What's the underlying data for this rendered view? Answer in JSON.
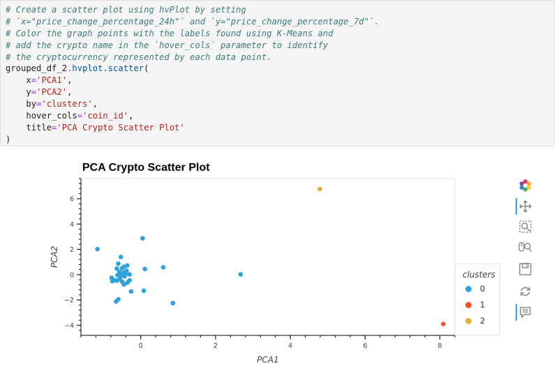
{
  "code_cell": {
    "comment_lines": [
      "# Create a scatter plot using hvPlot by setting",
      "# `x=\"price_change_percentage_24h\"` and `y=\"price_change_percentage_7d\"`.",
      "# Color the graph points with the labels found using K-Means and",
      "# add the crypto name in the `hover_cols` parameter to identify",
      "# the cryptocurrency represented by each data point."
    ],
    "call_object": "grouped_df_2",
    "call_method": "hvplot.scatter",
    "call_open": "(",
    "args": [
      {
        "name": "x",
        "value": "'PCA1'"
      },
      {
        "name": "y",
        "value": "'PCA2'"
      },
      {
        "name": "by",
        "value": "'clusters'"
      },
      {
        "name": "hover_cols",
        "value": "'coin_id'"
      },
      {
        "name": "title",
        "value": "'PCA Crypto Scatter Plot'"
      }
    ],
    "call_close": ")"
  },
  "plot": {
    "title": "PCA Crypto Scatter Plot"
  },
  "chart_data": {
    "type": "scatter",
    "title": "PCA Crypto Scatter Plot",
    "xlabel": "PCA1",
    "ylabel": "PCA2",
    "xlim": [
      -1.6,
      8.4
    ],
    "ylim": [
      -4.8,
      7.6
    ],
    "xticks": [
      0,
      2,
      4,
      6,
      8
    ],
    "yticks": [
      -4,
      -2,
      0,
      2,
      4,
      6
    ],
    "grid": false,
    "legend_title": "clusters",
    "legend_position": "right",
    "series": [
      {
        "name": "0",
        "color": "#30a2da",
        "points": [
          [
            -1.16,
            2.02
          ],
          [
            0.05,
            2.87
          ],
          [
            -0.53,
            1.4
          ],
          [
            -0.6,
            0.87
          ],
          [
            -0.45,
            0.62
          ],
          [
            -0.36,
            0.72
          ],
          [
            -0.64,
            0.48
          ],
          [
            -0.5,
            0.5
          ],
          [
            -0.38,
            0.3
          ],
          [
            -0.57,
            0.21
          ],
          [
            -0.46,
            0.15
          ],
          [
            -0.41,
            0.02
          ],
          [
            -0.3,
            0.02
          ],
          [
            -0.51,
            -0.05
          ],
          [
            -0.62,
            -0.04
          ],
          [
            -0.54,
            -0.12
          ],
          [
            -0.43,
            -0.13
          ],
          [
            -0.78,
            -0.25
          ],
          [
            -0.72,
            -0.43
          ],
          [
            -0.76,
            -0.52
          ],
          [
            -0.64,
            -0.47
          ],
          [
            -0.56,
            -0.35
          ],
          [
            -0.5,
            -0.55
          ],
          [
            -0.36,
            -0.63
          ],
          [
            -0.45,
            -0.78
          ],
          [
            -0.3,
            -0.45
          ],
          [
            -0.26,
            -1.33
          ],
          [
            -0.6,
            -1.95
          ],
          [
            -0.66,
            -2.12
          ],
          [
            0.08,
            -1.27
          ],
          [
            0.11,
            0.45
          ],
          [
            0.6,
            0.58
          ],
          [
            0.86,
            -2.25
          ],
          [
            2.67,
            0.02
          ]
        ]
      },
      {
        "name": "1",
        "color": "#fc4f30",
        "points": [
          [
            8.09,
            -3.9
          ]
        ]
      },
      {
        "name": "2",
        "color": "#e5ae38",
        "points": [
          [
            4.79,
            6.77
          ]
        ]
      }
    ]
  },
  "toolbar": {
    "tools": [
      {
        "name": "bokeh-logo-icon",
        "label": "Bokeh",
        "color": "#e6335b"
      },
      {
        "name": "pan-icon",
        "label": "Pan"
      },
      {
        "name": "box-zoom-icon",
        "label": "Box Zoom"
      },
      {
        "name": "wheel-zoom-icon",
        "label": "Wheel Zoom"
      },
      {
        "name": "save-icon",
        "label": "Save"
      },
      {
        "name": "reset-icon",
        "label": "Reset"
      },
      {
        "name": "hover-icon",
        "label": "Hover"
      }
    ],
    "accent": "#26aae1"
  }
}
